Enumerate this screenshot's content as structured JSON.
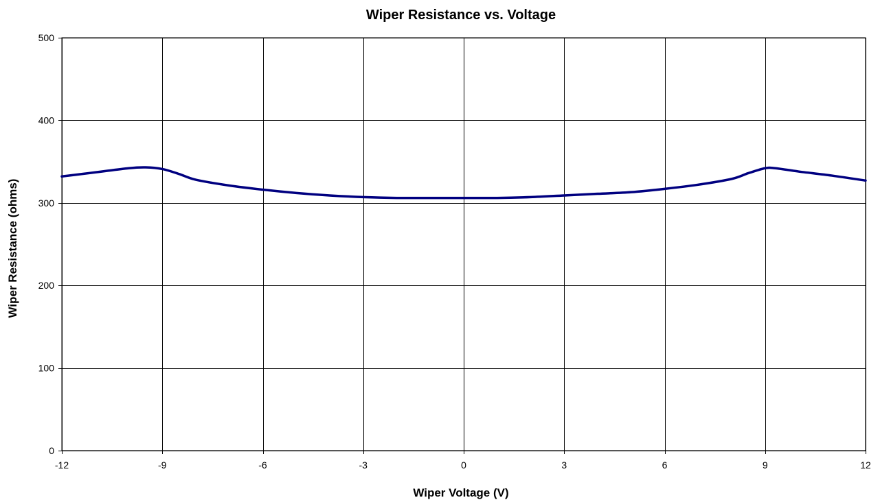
{
  "chart_data": {
    "type": "line",
    "title": "Wiper Resistance vs. Voltage",
    "xlabel": "Wiper Voltage (V)",
    "ylabel": "Wiper Resistance (ohms)",
    "xlim": [
      -12,
      12
    ],
    "ylim": [
      0,
      500
    ],
    "xticks": [
      -12,
      -9,
      -6,
      -3,
      0,
      3,
      6,
      9,
      12
    ],
    "yticks": [
      0,
      100,
      200,
      300,
      400,
      500
    ],
    "grid": true,
    "legend": "none",
    "line_color": "#000080",
    "series": [
      {
        "x": [
          -12,
          -11,
          -10,
          -9.5,
          -9,
          -8.5,
          -8,
          -7,
          -6,
          -5,
          -4,
          -3,
          -2,
          -1,
          0,
          1,
          2,
          3,
          4,
          5,
          6,
          7,
          8,
          8.5,
          9,
          9.3,
          10,
          11,
          12
        ],
        "values": [
          332,
          337,
          342,
          343,
          341,
          335,
          328,
          321,
          316,
          312,
          309,
          307,
          306,
          306,
          306,
          306,
          307,
          309,
          311,
          313,
          317,
          322,
          329,
          336,
          342,
          342,
          338,
          333,
          327
        ]
      }
    ]
  }
}
